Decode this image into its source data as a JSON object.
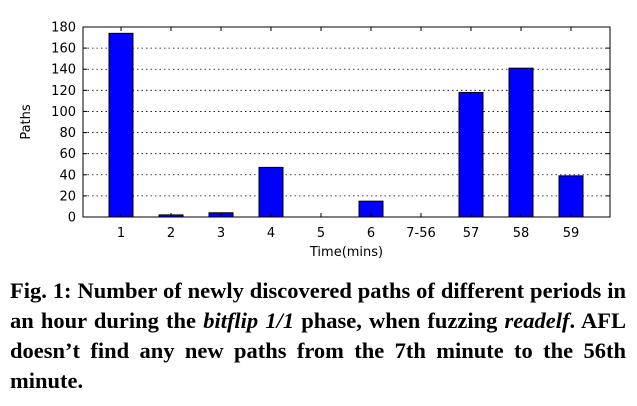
{
  "chart_data": {
    "type": "bar",
    "categories": [
      "1",
      "2",
      "3",
      "4",
      "5",
      "6",
      "7-56",
      "57",
      "58",
      "59"
    ],
    "values": [
      174,
      2,
      4,
      47,
      0,
      15,
      0,
      118,
      141,
      39
    ],
    "xlabel": "Time(mins)",
    "ylabel": "Paths",
    "ylim": [
      0,
      180
    ],
    "yticks": [
      0,
      20,
      40,
      60,
      80,
      100,
      120,
      140,
      160,
      180
    ],
    "grid": true,
    "bar_color": "#0000ff"
  },
  "caption": {
    "label": "Fig. 1:",
    "text_1": "Number of newly discovered paths of different periods in an hour during the",
    "em_1": "bitflip 1/1",
    "text_2": "phase, when fuzzing",
    "em_2": "readelf",
    "text_3": ". AFL doesn’t find any new paths from the 7th minute to the 56th minute."
  }
}
